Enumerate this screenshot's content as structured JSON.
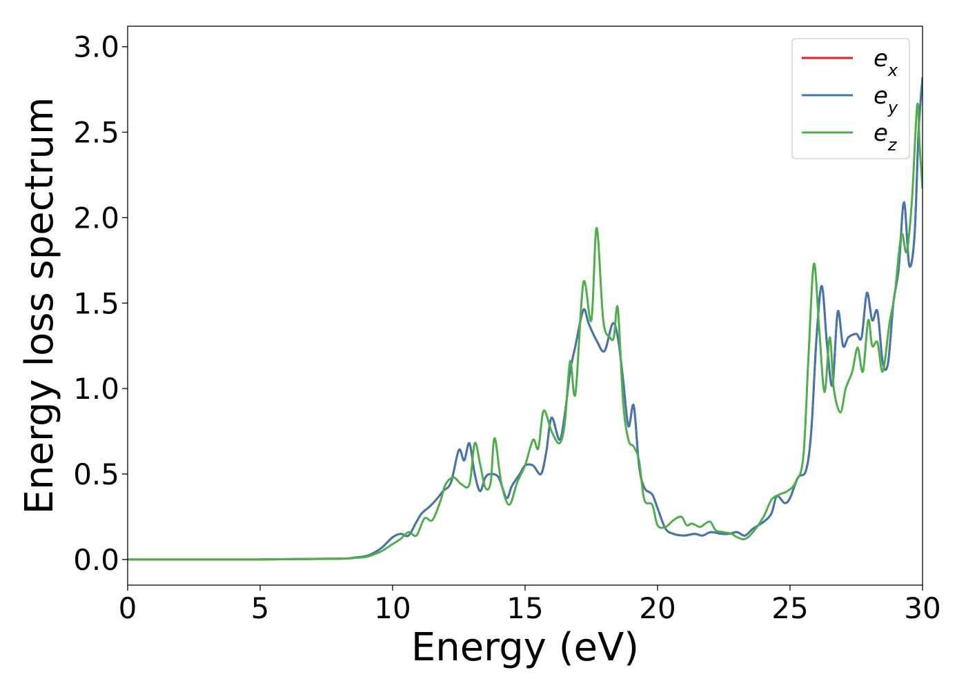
{
  "chart_data": {
    "type": "line",
    "xlabel": "Energy (eV)",
    "ylabel": "Energy loss spectrum",
    "xlim": [
      0,
      30
    ],
    "ylim": [
      -0.15,
      3.12
    ],
    "xticks": [
      "0",
      "5",
      "10",
      "15",
      "20",
      "25",
      "30"
    ],
    "yticks": [
      "0.0",
      "0.5",
      "1.0",
      "1.5",
      "2.0",
      "2.5",
      "3.0"
    ],
    "grid": false,
    "legend_position": "top-right",
    "series": [
      {
        "name": "e_x",
        "legend_base": "e",
        "legend_sub": "x",
        "color": "#e41a1c",
        "x": [
          0,
          5,
          8,
          8.5,
          9,
          9.3,
          9.6,
          10,
          10.3,
          10.6,
          10.9,
          11.1,
          11.4,
          11.7,
          11.9,
          12.2,
          12.5,
          12.7,
          12.9,
          13.1,
          13.3,
          13.5,
          13.7,
          14.0,
          14.3,
          14.5,
          14.8,
          15.0,
          15.3,
          15.6,
          15.8,
          16.0,
          16.3,
          16.5,
          16.7,
          16.9,
          17.2,
          17.4,
          17.7,
          18.0,
          18.3,
          18.5,
          18.7,
          18.9,
          19.1,
          19.3,
          19.5,
          19.8,
          20.0,
          20.3,
          20.6,
          21.0,
          21.4,
          21.7,
          22.0,
          22.4,
          22.7,
          23.0,
          23.3,
          23.6,
          24.0,
          24.3,
          24.5,
          24.8,
          25.0,
          25.3,
          25.6,
          25.8,
          26.0,
          26.2,
          26.4,
          26.6,
          26.8,
          27.0,
          27.2,
          27.5,
          27.7,
          27.9,
          28.1,
          28.3,
          28.5,
          28.7,
          28.9,
          29.1,
          29.3,
          29.5,
          29.7,
          29.85,
          30.0
        ],
        "y": [
          0.0,
          0.0,
          0.005,
          0.01,
          0.02,
          0.04,
          0.07,
          0.13,
          0.15,
          0.14,
          0.22,
          0.27,
          0.31,
          0.36,
          0.4,
          0.45,
          0.64,
          0.58,
          0.68,
          0.5,
          0.4,
          0.48,
          0.5,
          0.48,
          0.36,
          0.43,
          0.5,
          0.55,
          0.55,
          0.5,
          0.63,
          0.83,
          0.7,
          0.85,
          1.1,
          1.25,
          1.46,
          1.38,
          1.28,
          1.22,
          1.38,
          1.3,
          1.05,
          0.78,
          0.9,
          0.55,
          0.42,
          0.38,
          0.3,
          0.18,
          0.15,
          0.14,
          0.15,
          0.14,
          0.16,
          0.15,
          0.15,
          0.16,
          0.14,
          0.18,
          0.22,
          0.27,
          0.37,
          0.33,
          0.36,
          0.48,
          0.52,
          0.75,
          1.3,
          1.6,
          1.25,
          1.02,
          1.45,
          1.25,
          1.3,
          1.32,
          1.3,
          1.56,
          1.4,
          1.45,
          1.15,
          1.15,
          1.5,
          1.7,
          2.09,
          1.72,
          1.9,
          2.5,
          2.82
        ]
      },
      {
        "name": "e_y",
        "legend_base": "e",
        "legend_sub": "y",
        "color": "#3f77ae",
        "x": [
          0,
          5,
          8,
          8.5,
          9,
          9.3,
          9.6,
          10,
          10.3,
          10.6,
          10.9,
          11.1,
          11.4,
          11.7,
          11.9,
          12.2,
          12.5,
          12.7,
          12.9,
          13.1,
          13.3,
          13.5,
          13.7,
          14.0,
          14.3,
          14.5,
          14.8,
          15.0,
          15.3,
          15.6,
          15.8,
          16.0,
          16.3,
          16.5,
          16.7,
          16.9,
          17.2,
          17.4,
          17.7,
          18.0,
          18.3,
          18.5,
          18.7,
          18.9,
          19.1,
          19.3,
          19.5,
          19.8,
          20.0,
          20.3,
          20.6,
          21.0,
          21.4,
          21.7,
          22.0,
          22.4,
          22.7,
          23.0,
          23.3,
          23.6,
          24.0,
          24.3,
          24.5,
          24.8,
          25.0,
          25.3,
          25.6,
          25.8,
          26.0,
          26.2,
          26.4,
          26.6,
          26.8,
          27.0,
          27.2,
          27.5,
          27.7,
          27.9,
          28.1,
          28.3,
          28.5,
          28.7,
          28.9,
          29.1,
          29.3,
          29.5,
          29.7,
          29.85,
          30.0
        ],
        "y": [
          0.0,
          0.0,
          0.005,
          0.01,
          0.02,
          0.04,
          0.07,
          0.13,
          0.15,
          0.14,
          0.22,
          0.27,
          0.31,
          0.36,
          0.4,
          0.45,
          0.64,
          0.58,
          0.68,
          0.5,
          0.4,
          0.48,
          0.5,
          0.48,
          0.36,
          0.43,
          0.5,
          0.55,
          0.55,
          0.5,
          0.63,
          0.83,
          0.7,
          0.85,
          1.1,
          1.25,
          1.46,
          1.38,
          1.28,
          1.22,
          1.38,
          1.3,
          1.05,
          0.78,
          0.9,
          0.55,
          0.42,
          0.38,
          0.3,
          0.18,
          0.15,
          0.14,
          0.15,
          0.14,
          0.16,
          0.15,
          0.15,
          0.16,
          0.14,
          0.18,
          0.22,
          0.27,
          0.37,
          0.33,
          0.36,
          0.48,
          0.52,
          0.75,
          1.3,
          1.6,
          1.25,
          1.02,
          1.45,
          1.25,
          1.3,
          1.32,
          1.3,
          1.56,
          1.4,
          1.45,
          1.15,
          1.15,
          1.5,
          1.7,
          2.09,
          1.72,
          1.9,
          2.5,
          2.82
        ]
      },
      {
        "name": "e_z",
        "legend_base": "e",
        "legend_sub": "z",
        "color": "#4daf4a",
        "x": [
          0,
          5,
          8,
          8.5,
          9,
          9.3,
          9.6,
          10,
          10.3,
          10.6,
          10.9,
          11.2,
          11.5,
          11.8,
          12.0,
          12.3,
          12.6,
          12.9,
          13.1,
          13.3,
          13.5,
          13.7,
          13.85,
          14.1,
          14.4,
          14.7,
          15.0,
          15.3,
          15.5,
          15.7,
          16.0,
          16.3,
          16.5,
          16.7,
          16.9,
          17.2,
          17.5,
          17.7,
          17.95,
          18.2,
          18.35,
          18.5,
          18.7,
          18.9,
          19.1,
          19.3,
          19.5,
          19.8,
          20.0,
          20.3,
          20.6,
          20.9,
          21.1,
          21.3,
          21.6,
          21.8,
          22.0,
          22.2,
          22.5,
          22.8,
          23.0,
          23.3,
          23.6,
          24.0,
          24.3,
          24.6,
          24.9,
          25.2,
          25.5,
          25.7,
          25.9,
          26.1,
          26.3,
          26.5,
          26.65,
          26.9,
          27.1,
          27.35,
          27.55,
          27.75,
          27.95,
          28.1,
          28.3,
          28.5,
          28.75,
          28.95,
          29.2,
          29.4,
          29.6,
          29.8,
          29.9,
          30.0
        ],
        "y": [
          0.0,
          0.0,
          0.004,
          0.008,
          0.015,
          0.03,
          0.05,
          0.09,
          0.12,
          0.16,
          0.14,
          0.24,
          0.23,
          0.34,
          0.44,
          0.48,
          0.44,
          0.44,
          0.68,
          0.56,
          0.42,
          0.45,
          0.71,
          0.45,
          0.32,
          0.45,
          0.55,
          0.7,
          0.65,
          0.87,
          0.75,
          0.68,
          0.8,
          1.16,
          0.97,
          1.62,
          1.4,
          1.94,
          1.4,
          1.3,
          1.3,
          1.47,
          0.92,
          0.7,
          0.66,
          0.58,
          0.35,
          0.32,
          0.2,
          0.19,
          0.23,
          0.25,
          0.2,
          0.21,
          0.19,
          0.21,
          0.22,
          0.17,
          0.16,
          0.15,
          0.13,
          0.12,
          0.16,
          0.25,
          0.35,
          0.38,
          0.4,
          0.45,
          0.6,
          1.2,
          1.73,
          1.35,
          0.98,
          1.3,
          1.0,
          0.86,
          1.0,
          1.1,
          1.24,
          1.1,
          1.4,
          1.25,
          1.27,
          1.1,
          1.38,
          1.55,
          1.9,
          1.8,
          2.1,
          2.66,
          2.4,
          2.17
        ]
      }
    ]
  }
}
